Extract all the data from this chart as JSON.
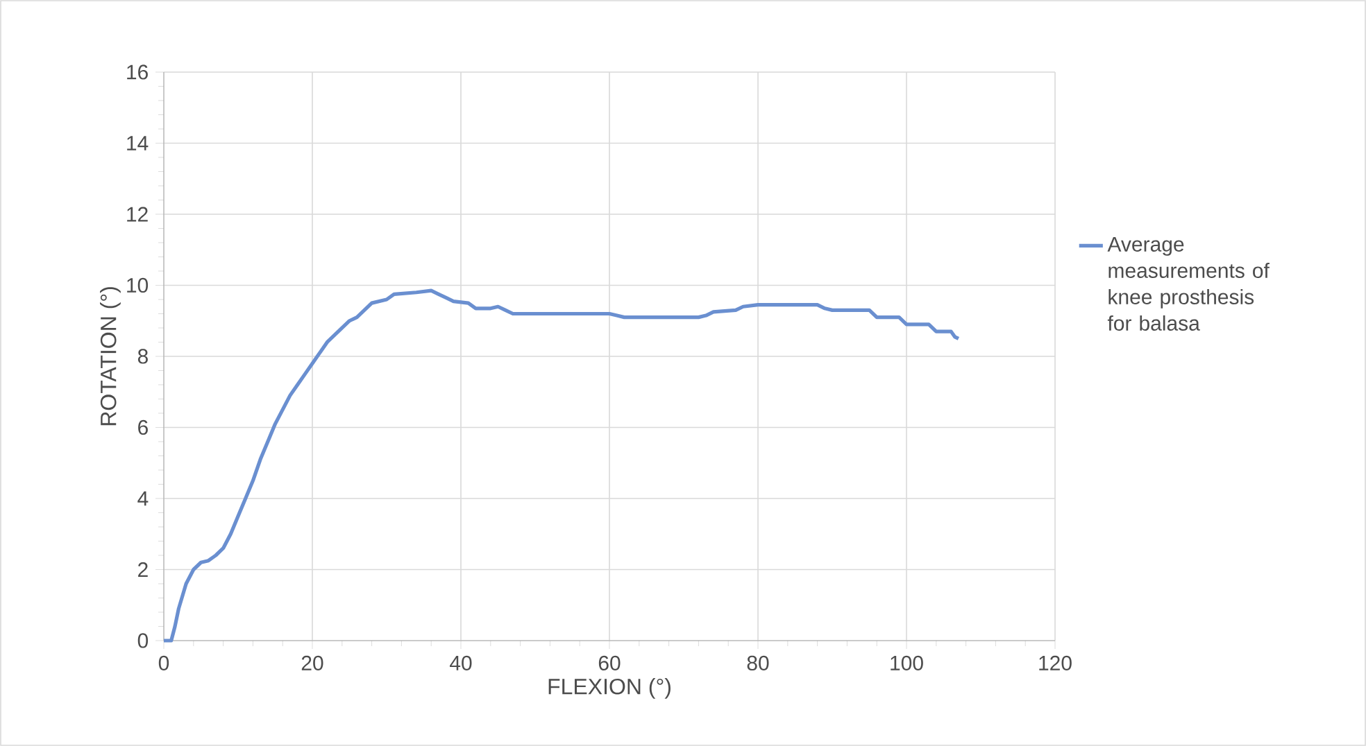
{
  "chart_data": {
    "type": "line",
    "xlabel": "FLEXION (°)",
    "ylabel": "ROTATION (°)",
    "xlim": [
      0,
      120
    ],
    "ylim": [
      0,
      16
    ],
    "xticks": [
      0,
      20,
      40,
      60,
      80,
      100,
      120
    ],
    "yticks": [
      0,
      2,
      4,
      6,
      8,
      10,
      12,
      14,
      16
    ],
    "grid": true,
    "legend": "right",
    "marker": "none",
    "line_style": "solid",
    "series": [
      {
        "name": "Average measurements of knee prosthesis for balasa",
        "color": "#6a8fd0",
        "x": [
          0,
          1,
          1.5,
          2,
          3,
          4,
          5,
          6,
          7,
          8,
          9,
          10,
          11,
          12,
          13,
          14,
          15,
          16,
          17,
          18,
          19,
          20,
          21,
          22,
          23,
          24,
          25,
          26,
          27,
          28,
          30,
          31,
          34,
          36,
          37,
          38,
          39,
          41,
          42,
          44,
          45,
          46,
          47,
          60,
          61,
          62,
          72,
          73,
          74,
          77,
          78,
          80,
          88,
          89,
          90,
          95,
          96,
          99,
          100,
          103,
          104,
          106,
          106.5,
          107
        ],
        "values": [
          0,
          0,
          0.4,
          0.9,
          1.6,
          2.0,
          2.2,
          2.25,
          2.4,
          2.6,
          3.0,
          3.5,
          4.0,
          4.5,
          5.1,
          5.6,
          6.1,
          6.5,
          6.9,
          7.2,
          7.5,
          7.8,
          8.1,
          8.4,
          8.6,
          8.8,
          9.0,
          9.1,
          9.3,
          9.5,
          9.6,
          9.75,
          9.8,
          9.85,
          9.75,
          9.65,
          9.55,
          9.5,
          9.35,
          9.35,
          9.4,
          9.3,
          9.2,
          9.2,
          9.15,
          9.1,
          9.1,
          9.15,
          9.25,
          9.3,
          9.4,
          9.45,
          9.45,
          9.35,
          9.3,
          9.3,
          9.1,
          9.1,
          8.9,
          8.9,
          8.7,
          8.7,
          8.55,
          8.5
        ]
      }
    ]
  }
}
